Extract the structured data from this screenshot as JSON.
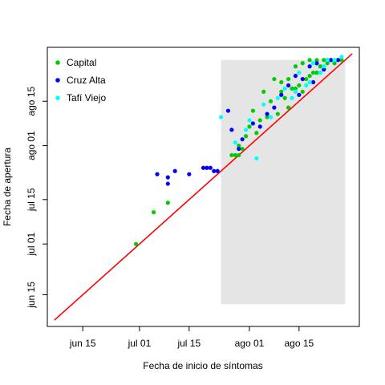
{
  "chart_data": {
    "type": "scatter",
    "xlabel": "Fecha de inicio de síntomas",
    "ylabel": "Fecha de apertura",
    "xlim": [
      "2020-06-05",
      "2020-09-01"
    ],
    "ylim": [
      "2020-06-05",
      "2020-09-01"
    ],
    "x_ticks": [
      {
        "date": "2020-06-15",
        "label": "jun 15"
      },
      {
        "date": "2020-07-01",
        "label": "jul 01"
      },
      {
        "date": "2020-07-15",
        "label": "jul 15"
      },
      {
        "date": "2020-08-01",
        "label": "ago 01"
      },
      {
        "date": "2020-08-15",
        "label": "ago 15"
      }
    ],
    "y_ticks": [
      {
        "date": "2020-06-15",
        "label": "jun 15"
      },
      {
        "date": "2020-07-01",
        "label": "jul 01"
      },
      {
        "date": "2020-07-15",
        "label": "jul 15"
      },
      {
        "date": "2020-08-01",
        "label": "ago 01"
      },
      {
        "date": "2020-08-15",
        "label": "ago 15"
      }
    ],
    "grid": false,
    "legend_position": "top-left",
    "shaded_region": {
      "x_from": "2020-07-24",
      "x_to": "2020-08-28",
      "y_from": "2020-06-12",
      "y_to": "2020-08-28",
      "color": "#e5e5e5"
    },
    "reference_line": {
      "from": "2020-06-07",
      "to": "2020-08-30",
      "color": "#ff0000"
    },
    "series": [
      {
        "name": "Capital",
        "color": "#00cd00",
        "points": [
          [
            "2020-06-30",
            "2020-07-01"
          ],
          [
            "2020-07-05",
            "2020-07-11"
          ],
          [
            "2020-07-09",
            "2020-07-14"
          ],
          [
            "2020-07-27",
            "2020-07-29"
          ],
          [
            "2020-07-28",
            "2020-07-29"
          ],
          [
            "2020-07-29",
            "2020-07-29"
          ],
          [
            "2020-07-29",
            "2020-08-01"
          ],
          [
            "2020-07-30",
            "2020-07-31"
          ],
          [
            "2020-07-31",
            "2020-08-04"
          ],
          [
            "2020-08-01",
            "2020-08-07"
          ],
          [
            "2020-08-02",
            "2020-08-12"
          ],
          [
            "2020-08-03",
            "2020-08-05"
          ],
          [
            "2020-08-04",
            "2020-08-09"
          ],
          [
            "2020-08-05",
            "2020-08-18"
          ],
          [
            "2020-08-06",
            "2020-08-10"
          ],
          [
            "2020-08-07",
            "2020-08-15"
          ],
          [
            "2020-08-08",
            "2020-08-22"
          ],
          [
            "2020-08-09",
            "2020-08-11"
          ],
          [
            "2020-08-10",
            "2020-08-21"
          ],
          [
            "2020-08-11",
            "2020-08-16"
          ],
          [
            "2020-08-12",
            "2020-08-22"
          ],
          [
            "2020-08-13",
            "2020-08-19"
          ],
          [
            "2020-08-14",
            "2020-08-26"
          ],
          [
            "2020-08-15",
            "2020-08-20"
          ],
          [
            "2020-08-16",
            "2020-08-27"
          ],
          [
            "2020-08-17",
            "2020-08-22"
          ],
          [
            "2020-08-18",
            "2020-08-28"
          ],
          [
            "2020-08-19",
            "2020-08-24"
          ],
          [
            "2020-08-20",
            "2020-08-28"
          ],
          [
            "2020-08-21",
            "2020-08-26"
          ],
          [
            "2020-08-22",
            "2020-08-28"
          ],
          [
            "2020-08-23",
            "2020-08-27"
          ],
          [
            "2020-08-24",
            "2020-08-28"
          ],
          [
            "2020-08-25",
            "2020-08-27"
          ],
          [
            "2020-08-26",
            "2020-08-28"
          ],
          [
            "2020-08-27",
            "2020-08-28"
          ],
          [
            "2020-08-10",
            "2020-08-18"
          ],
          [
            "2020-08-12",
            "2020-08-13"
          ],
          [
            "2020-08-14",
            "2020-08-19"
          ],
          [
            "2020-08-16",
            "2020-08-18"
          ],
          [
            "2020-08-18",
            "2020-08-23"
          ],
          [
            "2020-08-20",
            "2020-08-24"
          ]
        ]
      },
      {
        "name": "Cruz Alta",
        "color": "#0000ff",
        "points": [
          [
            "2020-07-06",
            "2020-07-23"
          ],
          [
            "2020-07-09",
            "2020-07-20"
          ],
          [
            "2020-07-09",
            "2020-07-22"
          ],
          [
            "2020-07-11",
            "2020-07-24"
          ],
          [
            "2020-07-15",
            "2020-07-23"
          ],
          [
            "2020-07-19",
            "2020-07-25"
          ],
          [
            "2020-07-20",
            "2020-07-25"
          ],
          [
            "2020-07-21",
            "2020-07-25"
          ],
          [
            "2020-07-22",
            "2020-07-24"
          ],
          [
            "2020-07-23",
            "2020-07-24"
          ],
          [
            "2020-07-26",
            "2020-08-12"
          ],
          [
            "2020-07-27",
            "2020-08-06"
          ],
          [
            "2020-07-29",
            "2020-07-31"
          ],
          [
            "2020-07-30",
            "2020-08-03"
          ],
          [
            "2020-08-02",
            "2020-08-08"
          ],
          [
            "2020-08-04",
            "2020-08-07"
          ],
          [
            "2020-08-06",
            "2020-08-11"
          ],
          [
            "2020-08-08",
            "2020-08-13"
          ],
          [
            "2020-08-10",
            "2020-08-17"
          ],
          [
            "2020-08-12",
            "2020-08-20"
          ],
          [
            "2020-08-14",
            "2020-08-23"
          ],
          [
            "2020-08-16",
            "2020-08-22"
          ],
          [
            "2020-08-18",
            "2020-08-26"
          ],
          [
            "2020-08-20",
            "2020-08-27"
          ],
          [
            "2020-08-22",
            "2020-08-25"
          ],
          [
            "2020-08-24",
            "2020-08-28"
          ],
          [
            "2020-08-26",
            "2020-08-28"
          ],
          [
            "2020-08-15",
            "2020-08-17"
          ],
          [
            "2020-08-19",
            "2020-08-21"
          ],
          [
            "2020-08-23",
            "2020-08-28"
          ]
        ]
      },
      {
        "name": "Tafí Viejo",
        "color": "#00ffff",
        "points": [
          [
            "2020-07-24",
            "2020-08-10"
          ],
          [
            "2020-07-28",
            "2020-08-02"
          ],
          [
            "2020-07-31",
            "2020-08-06"
          ],
          [
            "2020-08-01",
            "2020-08-09"
          ],
          [
            "2020-08-03",
            "2020-07-28"
          ],
          [
            "2020-08-05",
            "2020-08-14"
          ],
          [
            "2020-08-07",
            "2020-08-10"
          ],
          [
            "2020-08-09",
            "2020-08-16"
          ],
          [
            "2020-08-11",
            "2020-08-19"
          ],
          [
            "2020-08-13",
            "2020-08-16"
          ],
          [
            "2020-08-15",
            "2020-08-24"
          ],
          [
            "2020-08-17",
            "2020-08-20"
          ],
          [
            "2020-08-19",
            "2020-08-27"
          ],
          [
            "2020-08-21",
            "2020-08-24"
          ],
          [
            "2020-08-23",
            "2020-08-28"
          ],
          [
            "2020-08-25",
            "2020-08-28"
          ],
          [
            "2020-08-27",
            "2020-08-29"
          ],
          [
            "2020-08-14",
            "2020-08-18"
          ],
          [
            "2020-08-18",
            "2020-08-21"
          ],
          [
            "2020-08-22",
            "2020-08-26"
          ]
        ]
      }
    ]
  }
}
